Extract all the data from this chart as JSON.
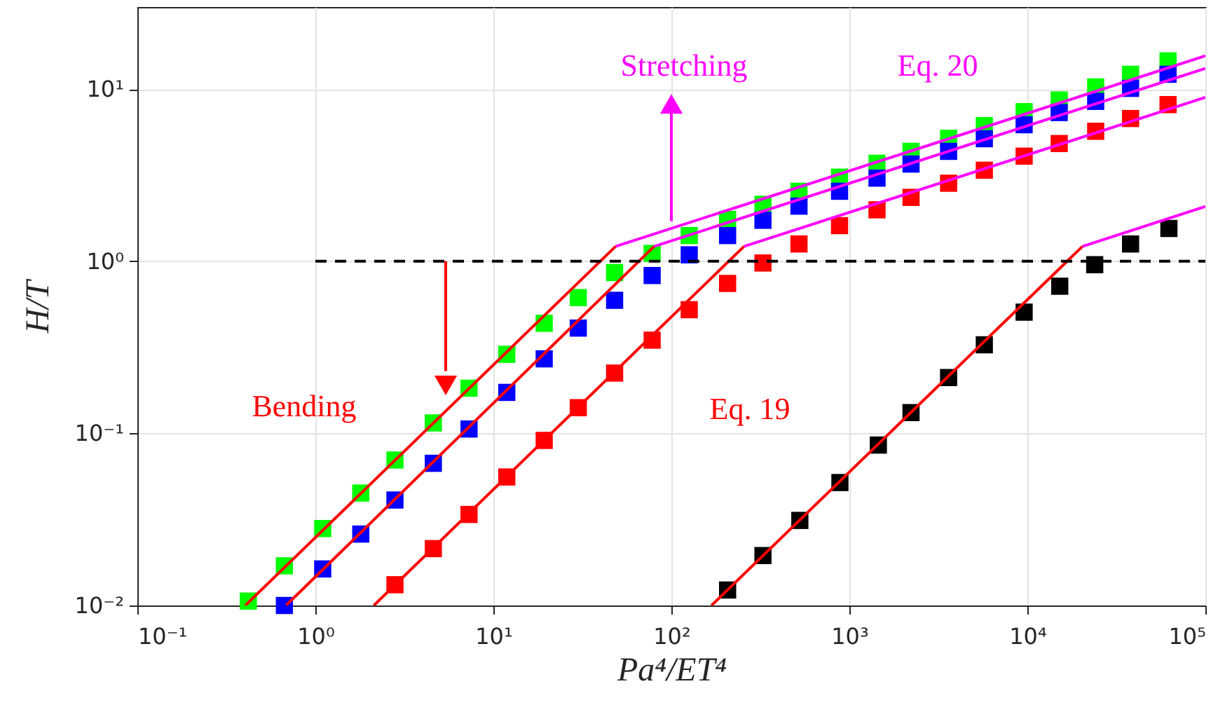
{
  "chart_data": {
    "type": "scatter",
    "xlabel": "Pa⁴/ET⁴",
    "ylabel": "H/T",
    "log": "xy",
    "grid": true,
    "xlim": [
      0.1,
      100000
    ],
    "ylim": [
      0.01,
      30
    ],
    "xticks": [
      {
        "value": 0.1,
        "label": "10⁻¹"
      },
      {
        "value": 1,
        "label": "10⁰"
      },
      {
        "value": 10,
        "label": "10¹"
      },
      {
        "value": 100,
        "label": "10²"
      },
      {
        "value": 1000,
        "label": "10³"
      },
      {
        "value": 10000,
        "label": "10⁴"
      },
      {
        "value": 100000,
        "label": "10⁵"
      }
    ],
    "yticks": [
      {
        "value": 0.01,
        "label": "10⁻²"
      },
      {
        "value": 0.1,
        "label": "10⁻¹"
      },
      {
        "value": 1,
        "label": "10⁰"
      },
      {
        "value": 10,
        "label": "10¹"
      }
    ],
    "series": [
      {
        "marker": "square",
        "color": "#00ff00",
        "x": [
          0.42,
          0.67,
          1.1,
          1.8,
          2.8,
          4.6,
          7.3,
          11.9,
          19.3,
          30,
          48,
          78,
          126,
          207,
          327,
          521,
          881,
          1430,
          2220,
          3610,
          5730,
          9590,
          15100,
          24200,
          38000,
          61700
        ],
        "values": [
          0.0106,
          0.017,
          0.028,
          0.045,
          0.07,
          0.115,
          0.183,
          0.288,
          0.436,
          0.615,
          0.86,
          1.11,
          1.41,
          1.75,
          2.14,
          2.55,
          3.08,
          3.71,
          4.35,
          5.18,
          6.14,
          7.4,
          8.65,
          10.3,
          12.2,
          14.6
        ]
      },
      {
        "marker": "square",
        "color": "#0000ff",
        "x": [
          0.67,
          1.1,
          1.8,
          2.8,
          4.6,
          7.3,
          11.9,
          19.3,
          30,
          48,
          78,
          126,
          207,
          327,
          521,
          881,
          1430,
          2220,
          3610,
          5730,
          9590,
          15100,
          24200,
          38000,
          61700
        ],
        "values": [
          0.01,
          0.0163,
          0.026,
          0.041,
          0.067,
          0.106,
          0.173,
          0.271,
          0.409,
          0.593,
          0.826,
          1.09,
          1.41,
          1.73,
          2.09,
          2.55,
          3.04,
          3.67,
          4.35,
          5.15,
          6.21,
          7.31,
          8.49,
          10.1,
          12.2
        ]
      },
      {
        "marker": "square",
        "color": "#ff0000",
        "x": [
          2.8,
          4.6,
          7.3,
          11.9,
          19.3,
          30,
          48,
          78,
          126,
          207,
          327,
          521,
          881,
          1430,
          2220,
          3610,
          5730,
          9590,
          15100,
          24200,
          38000,
          61700
        ],
        "values": [
          0.0132,
          0.0214,
          0.0338,
          0.0558,
          0.091,
          0.141,
          0.224,
          0.348,
          0.523,
          0.743,
          0.977,
          1.26,
          1.61,
          1.99,
          2.35,
          2.84,
          3.38,
          4.08,
          4.83,
          5.69,
          6.75,
          8.13
        ]
      },
      {
        "marker": "square",
        "color": "#000000",
        "x": [
          207,
          327,
          527,
          885,
          1455,
          2220,
          3610,
          5730,
          9590,
          15200,
          23900,
          38000,
          62400
        ],
        "values": [
          0.0123,
          0.0195,
          0.0312,
          0.0518,
          0.0855,
          0.132,
          0.211,
          0.327,
          0.506,
          0.716,
          0.955,
          1.26,
          1.55
        ]
      },
      {
        "type": "line",
        "color": "#ff0000",
        "x": [
          0.404,
          48.6
        ],
        "values": [
          0.01,
          1.22
        ]
      },
      {
        "type": "line",
        "color": "#ff00ff",
        "x": [
          48.6,
          100000
        ],
        "values": [
          1.22,
          15.6
        ]
      },
      {
        "type": "line",
        "color": "#ff0000",
        "x": [
          0.684,
          80
        ],
        "values": [
          0.01,
          1.22
        ]
      },
      {
        "type": "line",
        "color": "#ff00ff",
        "x": [
          80,
          100000
        ],
        "values": [
          1.22,
          13.2
        ]
      },
      {
        "type": "line",
        "color": "#ff0000",
        "x": [
          2.13,
          256
        ],
        "values": [
          0.01,
          1.22
        ]
      },
      {
        "type": "line",
        "color": "#ff00ff",
        "x": [
          256,
          100000
        ],
        "values": [
          1.22,
          8.95
        ]
      },
      {
        "type": "line",
        "color": "#ff0000",
        "x": [
          168,
          20400
        ],
        "values": [
          0.01,
          1.22
        ]
      },
      {
        "type": "line",
        "color": "#ff00ff",
        "x": [
          20400,
          100000
        ],
        "values": [
          1.22,
          2.08
        ]
      },
      {
        "type": "line",
        "color": "#000000",
        "line_style": "dashed",
        "x": [
          1,
          100000
        ],
        "values": [
          1,
          1
        ]
      }
    ],
    "annotations": [
      "Bending",
      "Eq. 19",
      {
        "text": "Stretching",
        "x": 100,
        "y": 1.71
      },
      "Eq. 20"
    ]
  }
}
